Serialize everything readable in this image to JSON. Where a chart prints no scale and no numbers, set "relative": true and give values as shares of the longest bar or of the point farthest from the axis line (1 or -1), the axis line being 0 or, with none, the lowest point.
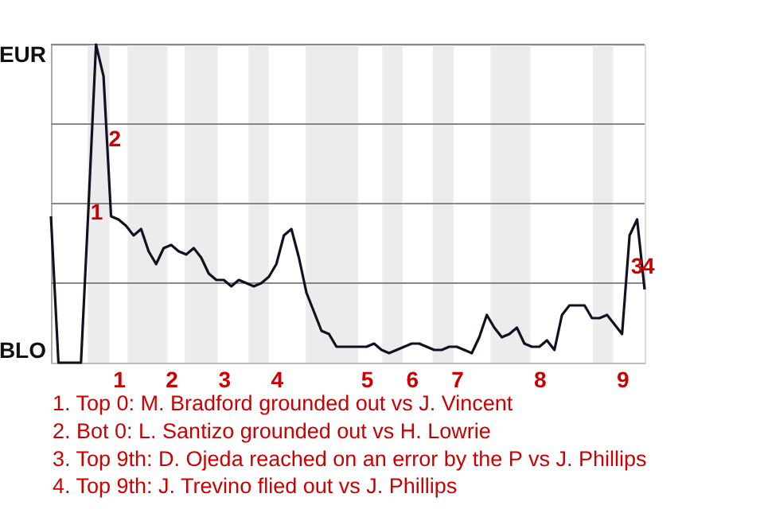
{
  "chart_data": {
    "type": "line",
    "relative": true,
    "categories": [
      null,
      null,
      null,
      null,
      null,
      null,
      null,
      null,
      null,
      "1",
      null,
      null,
      null,
      null,
      null,
      null,
      "2",
      null,
      null,
      null,
      null,
      null,
      null,
      "3",
      null,
      null,
      null,
      null,
      null,
      null,
      "4",
      null,
      null,
      null,
      null,
      null,
      null,
      null,
      null,
      null,
      null,
      null,
      "5",
      null,
      null,
      null,
      null,
      null,
      "6",
      null,
      null,
      null,
      null,
      null,
      "7",
      null,
      null,
      null,
      null,
      null,
      null,
      null,
      null,
      null,
      null,
      "8",
      null,
      null,
      null,
      null,
      null,
      null,
      null,
      null,
      null,
      null,
      "9",
      null,
      null,
      null
    ],
    "series": [
      {
        "color": "#111122",
        "values": [
          0.46,
          0,
          0,
          0,
          0,
          0.49,
          1,
          0.9,
          0.46,
          0.45,
          0.43,
          0.4,
          0.42,
          0.35,
          0.31,
          0.36,
          0.37,
          0.35,
          0.34,
          0.36,
          0.33,
          0.28,
          0.26,
          0.26,
          0.24,
          0.26,
          0.25,
          0.24,
          0.25,
          0.27,
          0.31,
          0.4,
          0.42,
          0.33,
          0.22,
          0.16,
          0.1,
          0.09,
          0.05,
          0.05,
          0.05,
          0.05,
          0.05,
          0.06,
          0.04,
          0.03,
          0.04,
          0.05,
          0.06,
          0.06,
          0.05,
          0.04,
          0.04,
          0.05,
          0.05,
          0.04,
          0.03,
          0.08,
          0.15,
          0.11,
          0.08,
          0.09,
          0.11,
          0.06,
          0.05,
          0.05,
          0.07,
          0.04,
          0.15,
          0.18,
          0.18,
          0.18,
          0.14,
          0.14,
          0.15,
          0.12,
          0.09,
          0.4,
          0.45,
          0.23
        ]
      }
    ],
    "ref_lines": [
      {
        "axis": "y",
        "value": 0.25,
        "color": "#888888"
      },
      {
        "axis": "y",
        "value": 0.5,
        "color": "#888888"
      },
      {
        "axis": "y",
        "value": 0.75,
        "color": "#888888"
      },
      {
        "axis": "y",
        "value": 1,
        "color": "#888888"
      }
    ],
    "annotations": [
      "EUR",
      "BLO",
      "1",
      "2",
      "3",
      "4",
      "1. Top 0: M. Bradford grounded out vs J. Vincent",
      "2. Bot 0: L. Santizo grounded out vs H. Lowrie",
      "3. Top 9th: D. Ojeda reached on an error by the P vs J. Phillips",
      "4. Top 9th: J. Trevino flied out vs J. Phillips"
    ]
  }
}
